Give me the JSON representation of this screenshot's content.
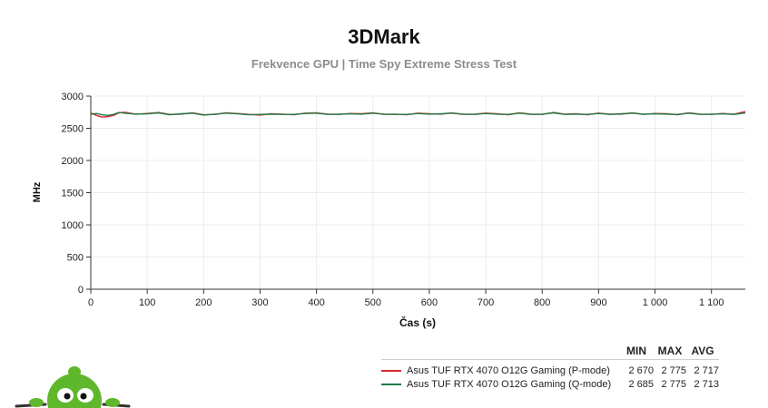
{
  "chart_data": {
    "type": "line",
    "title": "3DMark",
    "subtitle": "Frekvence GPU | Time Spy Extreme Stress Test",
    "xlabel": "Čas (s)",
    "ylabel": "MHz",
    "xlim": [
      0,
      1160
    ],
    "ylim": [
      0,
      3000
    ],
    "x_ticks": [
      0,
      100,
      200,
      300,
      400,
      500,
      600,
      700,
      800,
      900,
      1000,
      1100
    ],
    "x_tick_labels": [
      "0",
      "100",
      "200",
      "300",
      "400",
      "500",
      "600",
      "700",
      "800",
      "900",
      "1 000",
      "1 100"
    ],
    "y_ticks": [
      0,
      500,
      1000,
      1500,
      2000,
      2500,
      3000
    ],
    "y_tick_labels": [
      "0",
      "500",
      "1000",
      "1500",
      "2000",
      "2500",
      "3000"
    ],
    "grid": true,
    "x": [
      0,
      10,
      20,
      30,
      40,
      50,
      60,
      80,
      100,
      120,
      140,
      160,
      180,
      200,
      220,
      240,
      260,
      280,
      300,
      320,
      340,
      360,
      380,
      400,
      420,
      440,
      460,
      480,
      500,
      520,
      540,
      560,
      580,
      600,
      620,
      640,
      660,
      680,
      700,
      720,
      740,
      760,
      780,
      800,
      820,
      840,
      860,
      880,
      900,
      920,
      940,
      960,
      980,
      1000,
      1020,
      1040,
      1060,
      1080,
      1100,
      1120,
      1140,
      1160
    ],
    "series": [
      {
        "name": "Asus TUF RTX 4070 O12G Gaming (P-mode)",
        "color": "#d62728",
        "values": [
          2740,
          2700,
          2675,
          2680,
          2700,
          2740,
          2750,
          2720,
          2730,
          2745,
          2715,
          2720,
          2740,
          2710,
          2715,
          2740,
          2730,
          2715,
          2705,
          2725,
          2720,
          2710,
          2735,
          2740,
          2720,
          2715,
          2730,
          2725,
          2740,
          2715,
          2720,
          2710,
          2735,
          2725,
          2720,
          2740,
          2715,
          2720,
          2735,
          2725,
          2710,
          2740,
          2720,
          2715,
          2745,
          2720,
          2725,
          2710,
          2735,
          2720,
          2720,
          2740,
          2715,
          2730,
          2725,
          2710,
          2740,
          2720,
          2715,
          2730,
          2720,
          2760
        ],
        "min": "2 670",
        "max": "2 775",
        "avg": "2 717"
      },
      {
        "name": "Asus TUF RTX 4070 O12G Gaming (Q-mode)",
        "color": "#1e7a45",
        "values": [
          2720,
          2730,
          2710,
          2700,
          2715,
          2745,
          2735,
          2720,
          2725,
          2740,
          2710,
          2725,
          2735,
          2705,
          2720,
          2735,
          2725,
          2710,
          2715,
          2720,
          2715,
          2715,
          2730,
          2735,
          2715,
          2720,
          2725,
          2720,
          2735,
          2720,
          2715,
          2715,
          2730,
          2720,
          2725,
          2735,
          2720,
          2715,
          2730,
          2720,
          2715,
          2735,
          2715,
          2720,
          2740,
          2715,
          2720,
          2715,
          2730,
          2715,
          2725,
          2735,
          2720,
          2725,
          2720,
          2715,
          2735,
          2715,
          2720,
          2725,
          2715,
          2740
        ],
        "min": "2 685",
        "max": "2 775",
        "avg": "2 713"
      }
    ],
    "legend": {
      "position": "bottom-right",
      "headers": [
        "MIN",
        "MAX",
        "AVG"
      ]
    }
  }
}
